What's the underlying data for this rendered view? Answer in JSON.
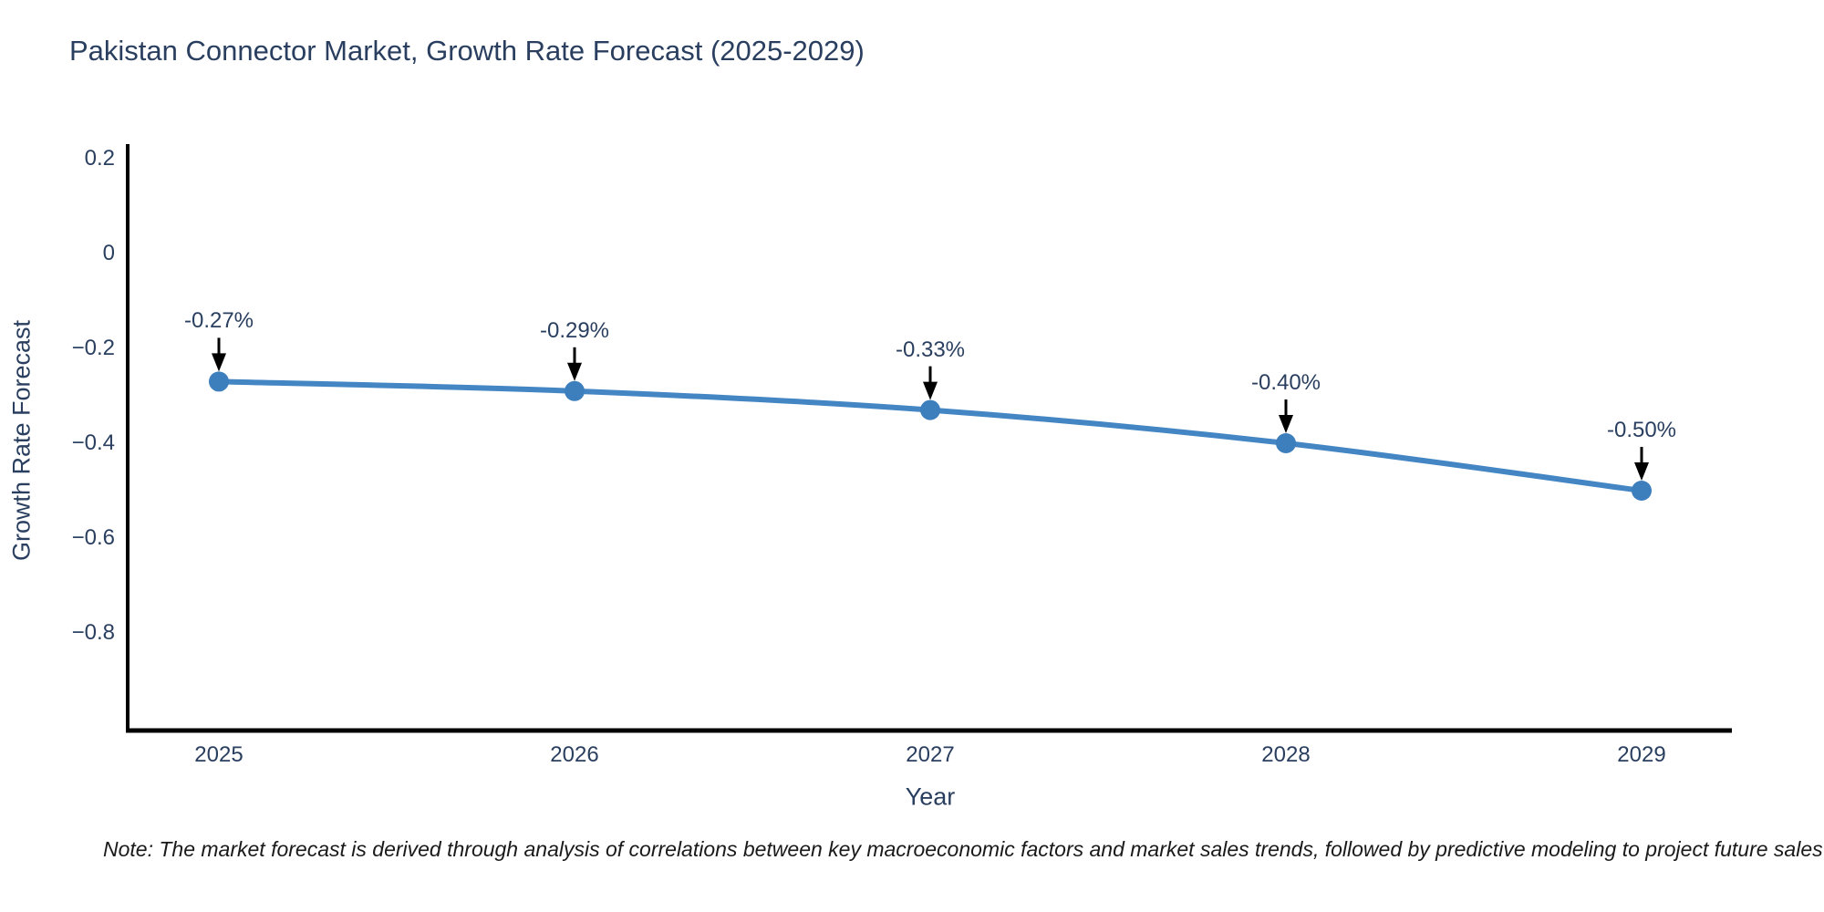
{
  "title": "Pakistan Connector Market, Growth Rate Forecast (2025-2029)",
  "note": "Note: The market forecast is derived through analysis of correlations between key macroeconomic factors and market sales trends, followed by predictive modeling to project future sales",
  "chart_data": {
    "type": "line",
    "title": "Pakistan Connector Market, Growth Rate Forecast (2025-2029)",
    "xlabel": "Year",
    "ylabel": "Growth Rate Forecast",
    "categories": [
      "2025",
      "2026",
      "2027",
      "2028",
      "2029"
    ],
    "x": [
      2025,
      2026,
      2027,
      2028,
      2029
    ],
    "values": [
      -0.27,
      -0.29,
      -0.33,
      -0.4,
      -0.5
    ],
    "point_labels": [
      "-0.27%",
      "-0.29%",
      "-0.33%",
      "-0.40%",
      "-0.50%"
    ],
    "yticks": {
      "values": [
        0.2,
        0,
        -0.2,
        -0.4,
        -0.6,
        -0.8
      ],
      "labels": [
        "0.2",
        "0",
        "−0.2",
        "−0.4",
        "−0.6",
        "−0.8"
      ]
    },
    "ylim": [
      -1.0,
      0.23
    ],
    "grid": false,
    "legend": "none",
    "annotation_style": "black-down-arrow",
    "colors": {
      "line": "#4486c4",
      "marker": "#3d7ebd",
      "axis": "#000000",
      "text": "#2a3f5f",
      "arrow": "#000000",
      "note_text": "#1a1a1a",
      "background": "#ffffff"
    }
  }
}
